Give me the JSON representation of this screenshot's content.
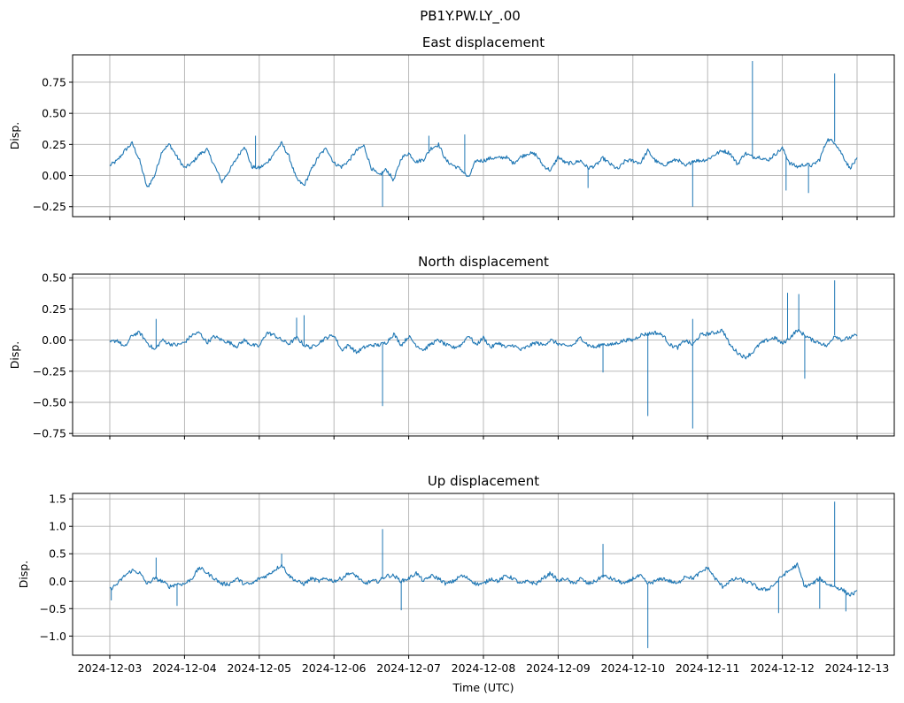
{
  "figure": {
    "suptitle": "PB1Y.PW.LY_.00",
    "xlabel": "Time (UTC)",
    "line_color": "#1f77b4"
  },
  "chart_data": [
    {
      "type": "line",
      "title": "East displacement",
      "ylabel": "Disp.",
      "xlabel": "",
      "show_xticklabels": false,
      "x_range_days": [
        0,
        10
      ],
      "ylim": [
        -0.33,
        0.97
      ],
      "yticks": [
        0.75,
        0.5,
        0.25,
        0.0,
        -0.25
      ],
      "ytick_labels": [
        "0.75",
        "0.50",
        "0.25",
        "0.00",
        "−0.25"
      ],
      "xtick_labels": [
        "2024-12-03",
        "2024-12-04",
        "2024-12-05",
        "2024-12-06",
        "2024-12-07",
        "2024-12-08",
        "2024-12-09",
        "2024-12-10",
        "2024-12-11",
        "2024-12-12",
        "2024-12-13"
      ],
      "grid": true,
      "series": [
        {
          "name": "East",
          "x": [
            0,
            0.1,
            0.2,
            0.3,
            0.4,
            0.5,
            0.6,
            0.7,
            0.8,
            0.9,
            1,
            1.1,
            1.2,
            1.3,
            1.4,
            1.5,
            1.6,
            1.7,
            1.8,
            1.9,
            2,
            2.1,
            2.2,
            2.3,
            2.4,
            2.5,
            2.6,
            2.7,
            2.8,
            2.9,
            3,
            3.1,
            3.2,
            3.3,
            3.4,
            3.5,
            3.6,
            3.7,
            3.8,
            3.9,
            4,
            4.1,
            4.2,
            4.3,
            4.4,
            4.5,
            4.6,
            4.7,
            4.8,
            4.9,
            5,
            5.1,
            5.2,
            5.3,
            5.4,
            5.5,
            5.6,
            5.7,
            5.8,
            5.9,
            6,
            6.1,
            6.2,
            6.3,
            6.4,
            6.5,
            6.6,
            6.7,
            6.8,
            6.9,
            7,
            7.1,
            7.2,
            7.3,
            7.4,
            7.5,
            7.6,
            7.7,
            7.8,
            7.9,
            8,
            8.1,
            8.2,
            8.3,
            8.4,
            8.5,
            8.6,
            8.7,
            8.8,
            8.9,
            9,
            9.1,
            9.2,
            9.3,
            9.4,
            9.5,
            9.6,
            9.7,
            9.8,
            9.9,
            10
          ],
          "y": [
            0.08,
            0.12,
            0.2,
            0.26,
            0.12,
            -0.1,
            0.0,
            0.2,
            0.25,
            0.15,
            0.06,
            0.1,
            0.17,
            0.21,
            0.08,
            -0.05,
            0.04,
            0.14,
            0.24,
            0.07,
            0.06,
            0.1,
            0.18,
            0.26,
            0.15,
            -0.03,
            -0.08,
            0.05,
            0.16,
            0.22,
            0.1,
            0.07,
            0.12,
            0.2,
            0.24,
            0.06,
            0.0,
            0.05,
            -0.04,
            0.14,
            0.18,
            0.11,
            0.13,
            0.22,
            0.25,
            0.12,
            0.08,
            0.05,
            -0.02,
            0.12,
            0.12,
            0.14,
            0.14,
            0.15,
            0.1,
            0.15,
            0.18,
            0.17,
            0.08,
            0.04,
            0.15,
            0.1,
            0.1,
            0.12,
            0.06,
            0.08,
            0.14,
            0.09,
            0.05,
            0.12,
            0.12,
            0.1,
            0.2,
            0.12,
            0.08,
            0.11,
            0.13,
            0.07,
            0.12,
            0.12,
            0.13,
            0.17,
            0.2,
            0.18,
            0.09,
            0.18,
            0.15,
            0.15,
            0.12,
            0.17,
            0.22,
            0.1,
            0.07,
            0.09,
            0.08,
            0.13,
            0.29,
            0.27,
            0.17,
            0.06,
            0.13
          ]
        }
      ],
      "spikes": [
        {
          "x": 8.6,
          "y": 0.92
        },
        {
          "x": 9.7,
          "y": 0.82
        },
        {
          "x": 7.8,
          "y": -0.25
        },
        {
          "x": 3.65,
          "y": -0.25
        },
        {
          "x": 9.05,
          "y": -0.12
        },
        {
          "x": 9.35,
          "y": -0.14
        },
        {
          "x": 4.27,
          "y": 0.32
        },
        {
          "x": 4.75,
          "y": 0.33
        },
        {
          "x": 1.95,
          "y": 0.32
        },
        {
          "x": 6.4,
          "y": -0.1
        }
      ]
    },
    {
      "type": "line",
      "title": "North displacement",
      "ylabel": "Disp.",
      "xlabel": "",
      "show_xticklabels": false,
      "x_range_days": [
        0,
        10
      ],
      "ylim": [
        -0.77,
        0.53
      ],
      "yticks": [
        0.5,
        0.25,
        0.0,
        -0.25,
        -0.5,
        -0.75
      ],
      "ytick_labels": [
        "0.50",
        "0.25",
        "0.00",
        "−0.25",
        "−0.50",
        "−0.75"
      ],
      "xtick_labels": [
        "2024-12-03",
        "2024-12-04",
        "2024-12-05",
        "2024-12-06",
        "2024-12-07",
        "2024-12-08",
        "2024-12-09",
        "2024-12-10",
        "2024-12-11",
        "2024-12-12",
        "2024-12-13"
      ],
      "grid": true,
      "series": [
        {
          "name": "North",
          "x": [
            0,
            0.1,
            0.2,
            0.3,
            0.4,
            0.5,
            0.6,
            0.7,
            0.8,
            0.9,
            1,
            1.1,
            1.2,
            1.3,
            1.4,
            1.5,
            1.6,
            1.7,
            1.8,
            1.9,
            2,
            2.1,
            2.2,
            2.3,
            2.4,
            2.5,
            2.6,
            2.7,
            2.8,
            2.9,
            3,
            3.1,
            3.2,
            3.3,
            3.4,
            3.5,
            3.6,
            3.7,
            3.8,
            3.9,
            4,
            4.1,
            4.2,
            4.3,
            4.4,
            4.5,
            4.6,
            4.7,
            4.8,
            4.9,
            5,
            5.1,
            5.2,
            5.3,
            5.4,
            5.5,
            5.6,
            5.7,
            5.8,
            5.9,
            6,
            6.1,
            6.2,
            6.3,
            6.4,
            6.5,
            6.6,
            6.7,
            6.8,
            6.9,
            7,
            7.1,
            7.2,
            7.3,
            7.4,
            7.5,
            7.6,
            7.7,
            7.8,
            7.9,
            8,
            8.1,
            8.2,
            8.3,
            8.4,
            8.5,
            8.6,
            8.7,
            8.8,
            8.9,
            9,
            9.1,
            9.2,
            9.3,
            9.4,
            9.5,
            9.6,
            9.7,
            9.8,
            9.9,
            10
          ],
          "y": [
            -0.02,
            0.0,
            -0.06,
            0.04,
            0.06,
            -0.02,
            -0.08,
            0.0,
            -0.03,
            -0.04,
            -0.02,
            0.04,
            0.06,
            -0.02,
            0.03,
            0.0,
            -0.02,
            -0.05,
            0.0,
            -0.04,
            -0.05,
            0.06,
            0.04,
            0.0,
            -0.03,
            0.02,
            -0.04,
            -0.06,
            -0.02,
            0.02,
            0.04,
            -0.08,
            -0.04,
            -0.1,
            -0.06,
            -0.04,
            -0.04,
            -0.02,
            0.05,
            -0.04,
            0.03,
            -0.04,
            -0.08,
            -0.03,
            0.0,
            -0.04,
            -0.06,
            -0.04,
            0.04,
            -0.04,
            0.02,
            -0.06,
            -0.02,
            -0.06,
            -0.04,
            -0.08,
            -0.05,
            -0.02,
            -0.04,
            0.0,
            -0.03,
            -0.05,
            -0.04,
            0.02,
            -0.04,
            -0.06,
            -0.03,
            -0.04,
            -0.02,
            0.0,
            0.0,
            0.04,
            0.05,
            0.06,
            0.04,
            -0.04,
            -0.06,
            0.0,
            -0.04,
            0.04,
            0.05,
            0.06,
            0.08,
            -0.04,
            -0.1,
            -0.14,
            -0.1,
            -0.03,
            0.0,
            0.02,
            -0.03,
            0.02,
            0.08,
            0.04,
            0.0,
            -0.02,
            -0.05,
            0.04,
            0.0,
            0.02,
            0.04
          ]
        }
      ],
      "spikes": [
        {
          "x": 3.65,
          "y": -0.53
        },
        {
          "x": 7.2,
          "y": -0.61
        },
        {
          "x": 7.8,
          "y": -0.71
        },
        {
          "x": 9.7,
          "y": 0.48
        },
        {
          "x": 9.07,
          "y": 0.38
        },
        {
          "x": 9.22,
          "y": 0.37
        },
        {
          "x": 9.3,
          "y": -0.31
        },
        {
          "x": 2.6,
          "y": 0.2
        },
        {
          "x": 2.5,
          "y": 0.18
        },
        {
          "x": 0.62,
          "y": 0.17
        },
        {
          "x": 7.8,
          "y": 0.17
        },
        {
          "x": 6.6,
          "y": -0.26
        }
      ]
    },
    {
      "type": "line",
      "title": "Up displacement",
      "ylabel": "Disp.",
      "xlabel": "Time (UTC)",
      "show_xticklabels": true,
      "x_range_days": [
        0,
        10
      ],
      "ylim": [
        -1.35,
        1.6
      ],
      "yticks": [
        1.5,
        1.0,
        0.5,
        0.0,
        -0.5,
        -1.0
      ],
      "ytick_labels": [
        "1.5",
        "1.0",
        "0.5",
        "0.0",
        "−0.5",
        "−1.0"
      ],
      "xtick_labels": [
        "2024-12-03",
        "2024-12-04",
        "2024-12-05",
        "2024-12-06",
        "2024-12-07",
        "2024-12-08",
        "2024-12-09",
        "2024-12-10",
        "2024-12-11",
        "2024-12-12",
        "2024-12-13"
      ],
      "grid": true,
      "series": [
        {
          "name": "Up",
          "x": [
            0,
            0.1,
            0.2,
            0.3,
            0.4,
            0.5,
            0.6,
            0.7,
            0.8,
            0.9,
            1,
            1.1,
            1.2,
            1.3,
            1.4,
            1.5,
            1.6,
            1.7,
            1.8,
            1.9,
            2,
            2.1,
            2.2,
            2.3,
            2.4,
            2.5,
            2.6,
            2.7,
            2.8,
            2.9,
            3,
            3.1,
            3.2,
            3.3,
            3.4,
            3.5,
            3.6,
            3.7,
            3.8,
            3.9,
            4,
            4.1,
            4.2,
            4.3,
            4.4,
            4.5,
            4.6,
            4.7,
            4.8,
            4.9,
            5,
            5.1,
            5.2,
            5.3,
            5.4,
            5.5,
            5.6,
            5.7,
            5.8,
            5.9,
            6,
            6.1,
            6.2,
            6.3,
            6.4,
            6.5,
            6.6,
            6.7,
            6.8,
            6.9,
            7,
            7.1,
            7.2,
            7.3,
            7.4,
            7.5,
            7.6,
            7.7,
            7.8,
            7.9,
            8,
            8.1,
            8.2,
            8.3,
            8.4,
            8.5,
            8.6,
            8.7,
            8.8,
            8.9,
            9,
            9.1,
            9.2,
            9.3,
            9.4,
            9.5,
            9.6,
            9.7,
            9.8,
            9.9,
            10
          ],
          "y": [
            -0.15,
            -0.05,
            0.1,
            0.2,
            0.15,
            -0.05,
            0.05,
            0.0,
            -0.1,
            -0.05,
            -0.05,
            0.05,
            0.25,
            0.15,
            0.05,
            -0.05,
            -0.05,
            0.05,
            -0.05,
            -0.05,
            0.05,
            0.1,
            0.2,
            0.3,
            0.1,
            0.0,
            -0.05,
            0.05,
            0.0,
            0.05,
            0.0,
            0.05,
            0.15,
            0.1,
            -0.05,
            0.0,
            0.0,
            0.1,
            0.1,
            0.0,
            0.05,
            0.15,
            0.0,
            0.1,
            0.05,
            -0.05,
            0.0,
            0.1,
            0.05,
            -0.05,
            -0.05,
            0.05,
            0.0,
            0.1,
            0.05,
            -0.05,
            0.0,
            -0.05,
            0.05,
            0.15,
            0.0,
            0.05,
            -0.05,
            0.05,
            -0.05,
            0.0,
            0.1,
            0.05,
            0.0,
            -0.05,
            0.05,
            0.1,
            -0.05,
            0.0,
            0.05,
            0.0,
            -0.05,
            0.1,
            0.05,
            0.15,
            0.25,
            0.05,
            -0.1,
            0.0,
            0.05,
            0.0,
            -0.05,
            -0.15,
            -0.15,
            -0.05,
            0.1,
            0.2,
            0.3,
            -0.1,
            -0.05,
            0.05,
            -0.05,
            -0.1,
            -0.15,
            -0.25,
            -0.2
          ]
        }
      ],
      "spikes": [
        {
          "x": 3.65,
          "y": 0.95
        },
        {
          "x": 9.7,
          "y": 1.45
        },
        {
          "x": 7.2,
          "y": -1.22
        },
        {
          "x": 6.6,
          "y": 0.68
        },
        {
          "x": 2.3,
          "y": 0.5
        },
        {
          "x": 0.62,
          "y": 0.43
        },
        {
          "x": 3.9,
          "y": -0.53
        },
        {
          "x": 8.95,
          "y": -0.58
        },
        {
          "x": 9.5,
          "y": -0.5
        },
        {
          "x": 0.02,
          "y": -0.35
        },
        {
          "x": 9.85,
          "y": -0.55
        },
        {
          "x": 0.9,
          "y": -0.45
        }
      ]
    }
  ]
}
